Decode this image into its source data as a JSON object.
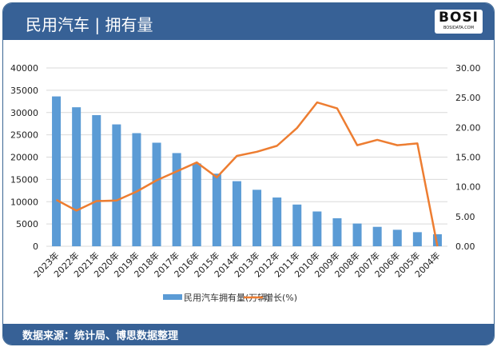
{
  "header": {
    "title": "民用汽车 | 拥有量",
    "logo_text": "BOSI",
    "logo_sub": "BOSIDATA.COM"
  },
  "footer": {
    "source": "数据来源：统计局、博思数据整理"
  },
  "colors": {
    "bar": "#5b9bd5",
    "line": "#ed7d31",
    "header": "#376196"
  },
  "chart_data": {
    "type": "bar+line",
    "categories": [
      "2023年",
      "2022年",
      "2021年",
      "2020年",
      "2019年",
      "2018年",
      "2017年",
      "2016年",
      "2015年",
      "2014年",
      "2013年",
      "2012年",
      "2011年",
      "2010年",
      "2009年",
      "2008年",
      "2007年",
      "2006年",
      "2005年",
      "2004年"
    ],
    "series": [
      {
        "name": "民用汽车拥有量(万辆)",
        "type": "bar",
        "axis": "left",
        "values": [
          33618,
          31184,
          29419,
          27340,
          25376,
          23231,
          20907,
          18575,
          16285,
          14598,
          12670,
          10933,
          9356,
          7802,
          6281,
          5100,
          4358,
          3697,
          3160,
          2694
        ]
      },
      {
        "name": "增长(%)",
        "type": "line",
        "axis": "right",
        "values": [
          7.8,
          6.0,
          7.6,
          7.7,
          9.2,
          11.1,
          12.6,
          14.1,
          11.6,
          15.2,
          15.9,
          16.9,
          19.9,
          24.2,
          23.2,
          17.0,
          17.9,
          17.0,
          17.3,
          0.0
        ]
      }
    ],
    "left_axis": {
      "min": 0,
      "max": 40000,
      "ticks": [
        "0",
        "5000",
        "10000",
        "15000",
        "20000",
        "25000",
        "30000",
        "35000",
        "40000"
      ]
    },
    "right_axis": {
      "min": 0,
      "max": 30,
      "ticks": [
        "0.00",
        "5.00",
        "10.00",
        "15.00",
        "20.00",
        "25.00",
        "30.00"
      ]
    },
    "grid": true,
    "legend": "bottom"
  }
}
